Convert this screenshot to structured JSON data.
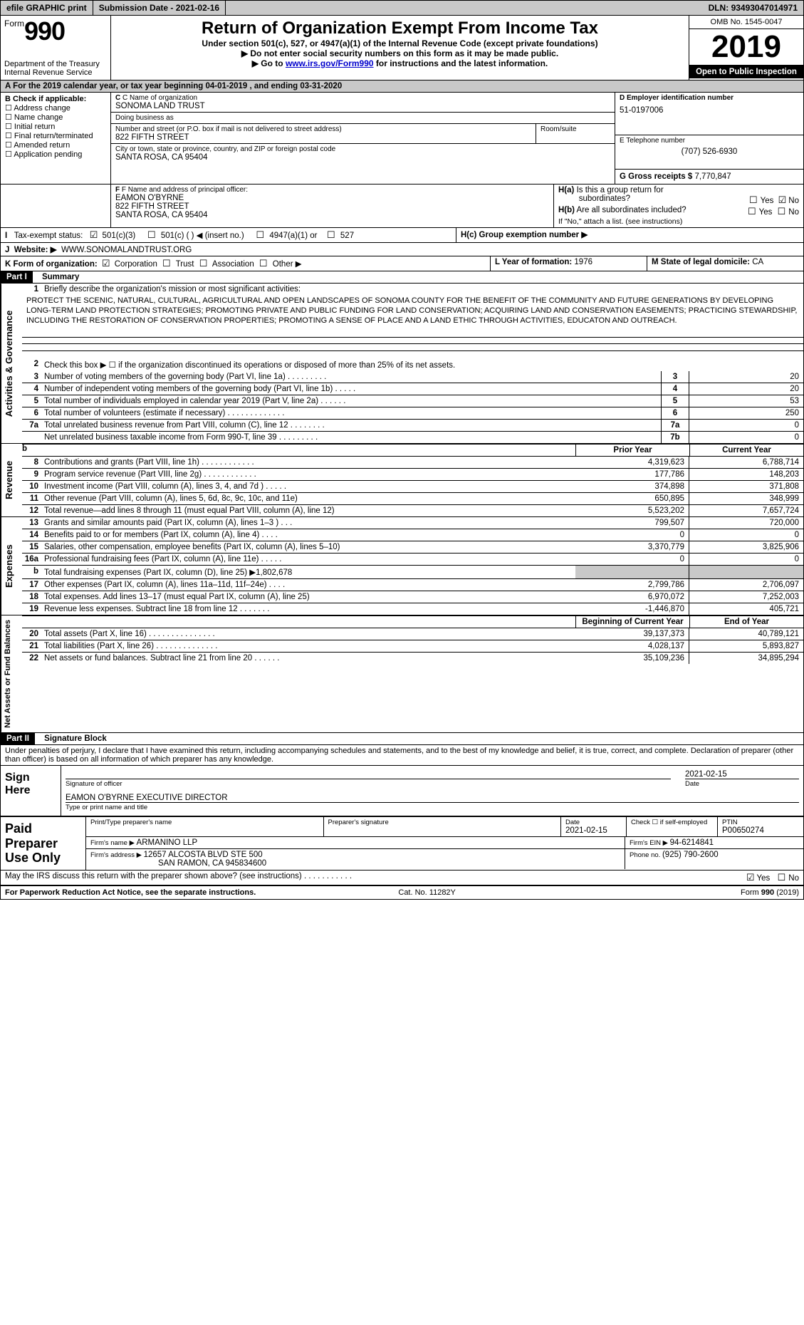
{
  "topbar": {
    "efile": "efile GRAPHIC print",
    "submission_label": "Submission Date - ",
    "submission_date": "2021-02-16",
    "dln_label": "DLN: ",
    "dln": "93493047014971"
  },
  "header": {
    "form_prefix": "Form",
    "form_number": "990",
    "title": "Return of Organization Exempt From Income Tax",
    "subhead1": "Under section 501(c), 527, or 4947(a)(1) of the Internal Revenue Code (except private foundations)",
    "subhead2": "Do not enter social security numbers on this form as it may be made public.",
    "subhead3_pre": "Go to ",
    "subhead3_link": "www.irs.gov/Form990",
    "subhead3_post": " for instructions and the latest information.",
    "dept": "Department of the Treasury\nInternal Revenue Service",
    "omb": "OMB No. 1545-0047",
    "year": "2019",
    "pub": "Open to Public Inspection",
    "yearline_a": "A",
    "yearline": "For the 2019 calendar year, or tax year beginning 04-01-2019   , and ending 03-31-2020"
  },
  "B": {
    "title": "B Check if applicable:",
    "items": [
      "Address change",
      "Name change",
      "Initial return",
      "Final return/terminated",
      "Amended return",
      "Application pending"
    ]
  },
  "C": {
    "name_lbl": "C Name of organization",
    "name": "SONOMA LAND TRUST",
    "dba_lbl": "Doing business as",
    "dba": "",
    "street_lbl": "Number and street (or P.O. box if mail is not delivered to street address)",
    "street": "822 FIFTH STREET",
    "room_lbl": "Room/suite",
    "city_lbl": "City or town, state or province, country, and ZIP or foreign postal code",
    "city": "SANTA ROSA, CA  95404"
  },
  "D": {
    "lbl": "D Employer identification number",
    "ein": "51-0197006"
  },
  "E": {
    "lbl": "E Telephone number",
    "phone": "(707) 526-6930"
  },
  "G": {
    "lbl": "G Gross receipts $ ",
    "val": "7,770,847"
  },
  "F": {
    "lbl": "F  Name and address of principal officer:",
    "name": "EAMON O'BYRNE",
    "street": "822 FIFTH STREET",
    "city": "SANTA ROSA, CA  95404"
  },
  "H": {
    "a": "H(a)  Is this a group return for subordinates?",
    "b": "H(b)  Are all subordinates included?",
    "b2": "If \"No,\" attach a list. (see instructions)",
    "c": "H(c)  Group exemption number ▶",
    "yes": "Yes",
    "no": "No"
  },
  "I": {
    "lbl": "I   Tax-exempt status:",
    "a": "501(c)(3)",
    "b": "501(c) (   ) ◀ (insert no.)",
    "c": "4947(a)(1) or",
    "d": "527"
  },
  "J": {
    "lbl": "J  Website: ▶  ",
    "val": "WWW.SONOMALANDTRUST.ORG"
  },
  "K": {
    "lbl": "K Form of organization:",
    "a": "Corporation",
    "b": "Trust",
    "c": "Association",
    "d": "Other ▶"
  },
  "L": {
    "lbl": "L Year of formation: ",
    "val": "1976"
  },
  "M": {
    "lbl": "M State of legal domicile: ",
    "val": "CA"
  },
  "part1": {
    "bar": "Part I",
    "title": "Summary"
  },
  "ag": {
    "label": "Activities & Governance",
    "l1_lbl": "Briefly describe the organization's mission or most significant activities:",
    "l1_mission": "PROTECT THE SCENIC, NATURAL, CULTURAL, AGRICULTURAL AND OPEN LANDSCAPES OF SONOMA COUNTY FOR THE BENEFIT OF THE COMMUNITY AND FUTURE GENERATIONS BY DEVELOPING LONG-TERM LAND PROTECTION STRATEGIES; PROMOTING PRIVATE AND PUBLIC FUNDING FOR LAND CONSERVATION; ACQUIRING LAND AND CONSERVATION EASEMENTS; PRACTICING STEWARDSHIP, INCLUDING THE RESTORATION OF CONSERVATION PROPERTIES; PROMOTING A SENSE OF PLACE AND A LAND ETHIC THROUGH ACTIVITIES, EDUCATON AND OUTREACH.",
    "l2": "Check this box ▶ ☐  if the organization discontinued its operations or disposed of more than 25% of its net assets.",
    "l3": "Number of voting members of the governing body (Part VI, line 1a)   .   .   .   .   .   .   .   .   .",
    "l3v": "20",
    "l4": "Number of independent voting members of the governing body (Part VI, line 1b)   .   .   .   .   .",
    "l4v": "20",
    "l5": "Total number of individuals employed in calendar year 2019 (Part V, line 2a)   .   .   .   .   .   .",
    "l5v": "53",
    "l6": "Total number of volunteers (estimate if necessary)    .   .   .   .   .   .   .   .   .   .   .   .   .",
    "l6v": "250",
    "l7a": "Total unrelated business revenue from Part VIII, column (C), line 12   .   .   .   .   .   .   .   .",
    "l7av": "0",
    "l7b": "Net unrelated business taxable income from Form 990-T, line 39    .   .   .   .   .   .   .   .   .",
    "l7bv": "0"
  },
  "rev": {
    "label": "Revenue",
    "prior": "Prior Year",
    "cur": "Current Year",
    "rows": [
      {
        "n": "8",
        "t": "Contributions and grants (Part VIII, line 1h)   .   .   .   .   .   .   .   .   .   .   .   .",
        "p": "4,319,623",
        "c": "6,788,714"
      },
      {
        "n": "9",
        "t": "Program service revenue (Part VIII, line 2g)    .   .   .   .   .   .   .   .   .   .   .   .",
        "p": "177,786",
        "c": "148,203"
      },
      {
        "n": "10",
        "t": "Investment income (Part VIII, column (A), lines 3, 4, and 7d )   .   .   .   .   .",
        "p": "374,898",
        "c": "371,808"
      },
      {
        "n": "11",
        "t": "Other revenue (Part VIII, column (A), lines 5, 6d, 8c, 9c, 10c, and 11e)",
        "p": "650,895",
        "c": "348,999"
      },
      {
        "n": "12",
        "t": "Total revenue—add lines 8 through 11 (must equal Part VIII, column (A), line 12)",
        "p": "5,523,202",
        "c": "7,657,724"
      }
    ]
  },
  "exp": {
    "label": "Expenses",
    "rows": [
      {
        "n": "13",
        "t": "Grants and similar amounts paid (Part IX, column (A), lines 1–3 )   .   .   .",
        "p": "799,507",
        "c": "720,000"
      },
      {
        "n": "14",
        "t": "Benefits paid to or for members (Part IX, column (A), line 4)   .   .   .   .",
        "p": "0",
        "c": "0"
      },
      {
        "n": "15",
        "t": "Salaries, other compensation, employee benefits (Part IX, column (A), lines 5–10)",
        "p": "3,370,779",
        "c": "3,825,906"
      },
      {
        "n": "16a",
        "t": "Professional fundraising fees (Part IX, column (A), line 11e)   .   .   .   .   .",
        "p": "0",
        "c": "0"
      },
      {
        "n": "b",
        "t": "Total fundraising expenses (Part IX, column (D), line 25) ▶1,802,678",
        "p": "",
        "c": "",
        "shade": true
      },
      {
        "n": "17",
        "t": "Other expenses (Part IX, column (A), lines 11a–11d, 11f–24e)   .   .   .   .",
        "p": "2,799,786",
        "c": "2,706,097"
      },
      {
        "n": "18",
        "t": "Total expenses. Add lines 13–17 (must equal Part IX, column (A), line 25)",
        "p": "6,970,072",
        "c": "7,252,003"
      },
      {
        "n": "19",
        "t": "Revenue less expenses. Subtract line 18 from line 12   .   .   .   .   .   .   .",
        "p": "-1,446,870",
        "c": "405,721"
      }
    ]
  },
  "na": {
    "label": "Net Assets or Fund Balances",
    "h1": "Beginning of Current Year",
    "h2": "End of Year",
    "rows": [
      {
        "n": "20",
        "t": "Total assets (Part X, line 16)    .   .   .   .   .   .   .   .   .   .   .   .   .   .   .",
        "p": "39,137,373",
        "c": "40,789,121"
      },
      {
        "n": "21",
        "t": "Total liabilities (Part X, line 26)    .   .   .   .   .   .   .   .   .   .   .   .   .   .",
        "p": "4,028,137",
        "c": "5,893,827"
      },
      {
        "n": "22",
        "t": "Net assets or fund balances. Subtract line 21 from line 20   .   .   .   .   .   .",
        "p": "35,109,236",
        "c": "34,895,294"
      }
    ]
  },
  "part2": {
    "bar": "Part II",
    "title": "Signature Block",
    "decl": "Under penalties of perjury, I declare that I have examined this return, including accompanying schedules and statements, and to the best of my knowledge and belief, it is true, correct, and complete. Declaration of preparer (other than officer) is based on all information of which preparer has any knowledge."
  },
  "sign": {
    "here": "Sign Here",
    "date": "2021-02-15",
    "off_lbl": "Signature of officer",
    "date_lbl": "Date",
    "name": "EAMON O'BYRNE  EXECUTIVE DIRECTOR",
    "name_lbl": "Type or print name and title"
  },
  "paid": {
    "title": "Paid Preparer Use Only",
    "hdr": [
      "Print/Type preparer's name",
      "Preparer's signature",
      "Date",
      "",
      "PTIN"
    ],
    "date": "2021-02-15",
    "self": "Check ☐  if self-employed",
    "ptin": "P00650274",
    "firm_lbl": "Firm's name      ▶ ",
    "firm": "ARMANINO LLP",
    "ein_lbl": "Firm's EIN ▶ ",
    "ein": "94-6214841",
    "addr_lbl": "Firm's address ▶ ",
    "addr1": "12657 ALCOSTA BLVD STE 500",
    "addr2": "SAN RAMON, CA  945834600",
    "phone_lbl": "Phone no. ",
    "phone": "(925) 790-2600"
  },
  "may": {
    "t": "May the IRS discuss this return with the preparer shown above? (see instructions)   .   .   .   .   .   .   .   .   .   .   .",
    "yes": "Yes",
    "no": "No"
  },
  "footer": {
    "l": "For Paperwork Reduction Act Notice, see the separate instructions.",
    "c": "Cat. No. 11282Y",
    "r": "Form 990 (2019)"
  }
}
